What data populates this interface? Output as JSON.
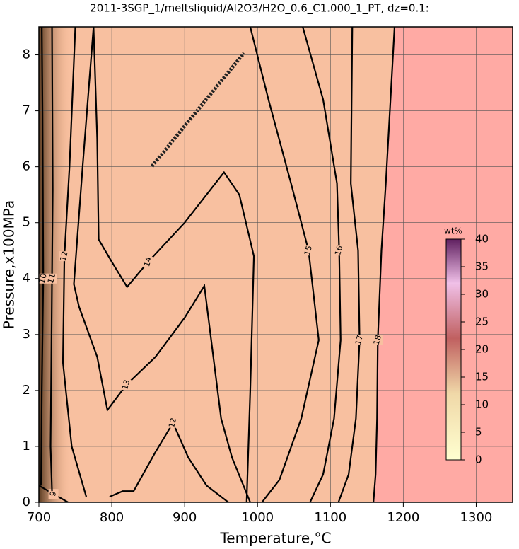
{
  "chart_data": {
    "type": "contour",
    "title": "2011-3SGP_1/meltsliquid/Al2O3/H2O_0.6_C1.000_1_PT, dz=0.1:",
    "x_label": "Temperature,°C",
    "y_label": "Pressure,x100MPa",
    "xlim": [
      700,
      1350
    ],
    "ylim": [
      0,
      8.5
    ],
    "xticks": [
      700,
      800,
      900,
      1000,
      1100,
      1200,
      1300
    ],
    "yticks": [
      0,
      1,
      2,
      3,
      4,
      5,
      6,
      7,
      8
    ],
    "grid": true,
    "contours": [
      {
        "level": 9,
        "x": [
          700,
          720,
          740
        ],
        "y": [
          0.3,
          0.15,
          0
        ]
      },
      {
        "level": 10,
        "x": [
          703,
          704,
          706,
          705,
          704
        ],
        "y": [
          0.3,
          2,
          4,
          6.9,
          8.5
        ]
      },
      {
        "level": 11,
        "x": [
          718,
          716,
          717,
          718,
          719,
          718
        ],
        "y": [
          0.2,
          1,
          2.4,
          4,
          5.6,
          8.5
        ]
      },
      {
        "level": 12,
        "x": [
          765,
          745,
          733,
          735,
          742,
          750
        ],
        "y": [
          0.1,
          1,
          2.5,
          4.4,
          6,
          8.5
        ]
      },
      {
        "level": 12,
        "x": [
          797,
          815,
          830,
          860,
          884,
          905,
          930,
          960
        ],
        "y": [
          0.1,
          0.2,
          0.2,
          0.9,
          1.42,
          0.8,
          0.3,
          0
        ]
      },
      {
        "level": 13,
        "x": [
          990,
          965,
          950,
          927,
          900,
          860,
          820,
          794,
          780,
          755,
          748,
          760,
          775
        ],
        "y": [
          0,
          0.8,
          1.5,
          3.87,
          3.3,
          2.6,
          2.1,
          1.65,
          2.6,
          3.5,
          3.9,
          6,
          8.5
        ]
      },
      {
        "level": 14,
        "x": [
          985,
          990,
          995,
          975,
          954,
          900,
          850,
          821,
          800,
          782,
          780,
          775
        ],
        "y": [
          0,
          2,
          4.4,
          5.5,
          5.9,
          5,
          4.3,
          3.85,
          4.3,
          4.7,
          6.5,
          8.5
        ]
      },
      {
        "level": 15,
        "x": [
          1006,
          1030,
          1060,
          1084,
          1070,
          1046,
          1015,
          990
        ],
        "y": [
          0,
          0.4,
          1.5,
          2.9,
          4.5,
          5.7,
          7.2,
          8.5
        ]
      },
      {
        "level": 16,
        "x": [
          1072,
          1090,
          1105,
          1114,
          1112,
          1109,
          1090,
          1062
        ],
        "y": [
          0,
          0.5,
          1.5,
          2.9,
          4.5,
          5.7,
          7.2,
          8.5
        ]
      },
      {
        "level": 17,
        "x": [
          1111,
          1125,
          1135,
          1140,
          1138,
          1128,
          1130
        ],
        "y": [
          0,
          0.5,
          1.5,
          2.9,
          4.5,
          5.7,
          8.5
        ]
      },
      {
        "level": 18,
        "x": [
          1159,
          1162,
          1164,
          1165,
          1170,
          1176,
          1188
        ],
        "y": [
          0,
          0.5,
          1.5,
          2.9,
          4.5,
          5.7,
          8.5
        ]
      }
    ],
    "colorbar": {
      "title": "wt%",
      "lim": [
        0,
        40
      ],
      "ticks": [
        0,
        5,
        10,
        15,
        20,
        25,
        30,
        35,
        40
      ]
    }
  }
}
